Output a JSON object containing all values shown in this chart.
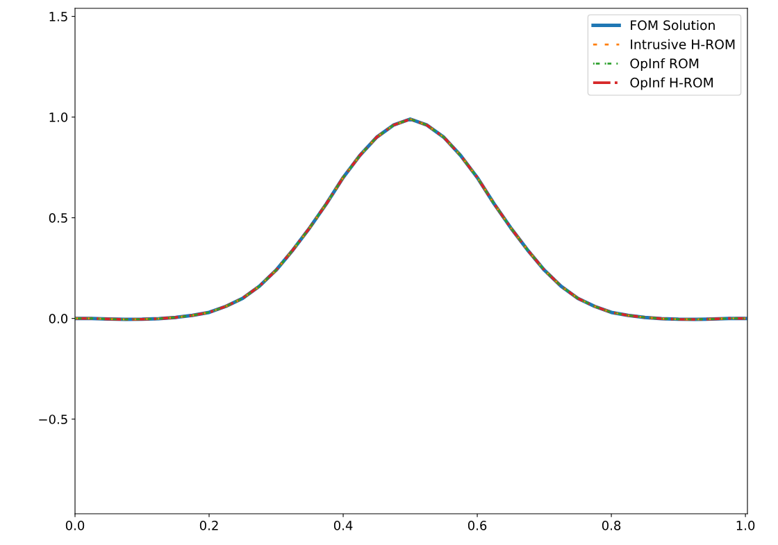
{
  "chart_data": {
    "type": "line",
    "x": [
      0,
      0.025,
      0.05,
      0.075,
      0.1,
      0.125,
      0.15,
      0.175,
      0.2,
      0.225,
      0.25,
      0.275,
      0.3,
      0.325,
      0.35,
      0.375,
      0.4,
      0.425,
      0.45,
      0.475,
      0.5,
      0.525,
      0.55,
      0.575,
      0.6,
      0.625,
      0.65,
      0.675,
      0.7,
      0.725,
      0.75,
      0.775,
      0.8,
      0.825,
      0.85,
      0.875,
      0.9,
      0.925,
      0.95,
      0.975,
      1.0
    ],
    "series": [
      {
        "name": "FOM Solution",
        "color": "#1f77b4",
        "line_style": "solid",
        "values": [
          0.0,
          0.0,
          -0.003,
          -0.005,
          -0.004,
          -0.001,
          0.005,
          0.015,
          0.03,
          0.06,
          0.1,
          0.16,
          0.24,
          0.34,
          0.45,
          0.57,
          0.7,
          0.81,
          0.9,
          0.96,
          0.99,
          0.96,
          0.9,
          0.81,
          0.7,
          0.57,
          0.45,
          0.34,
          0.24,
          0.16,
          0.1,
          0.06,
          0.03,
          0.015,
          0.005,
          -0.001,
          -0.004,
          -0.005,
          -0.003,
          0.0,
          0.0
        ]
      },
      {
        "name": "Intrusive H-ROM",
        "color": "#ff7f0e",
        "line_style": "dashed",
        "values": [
          0.0,
          0.0,
          -0.003,
          -0.005,
          -0.004,
          -0.001,
          0.005,
          0.015,
          0.03,
          0.06,
          0.1,
          0.16,
          0.24,
          0.34,
          0.45,
          0.57,
          0.7,
          0.81,
          0.9,
          0.96,
          0.99,
          0.96,
          0.9,
          0.81,
          0.7,
          0.57,
          0.45,
          0.34,
          0.24,
          0.16,
          0.1,
          0.06,
          0.03,
          0.015,
          0.005,
          -0.001,
          -0.004,
          -0.005,
          -0.003,
          0.0,
          0.0
        ]
      },
      {
        "name": "OpInf ROM",
        "color": "#2ca02c",
        "line_style": "dashed",
        "values": [
          0.0,
          0.0,
          -0.003,
          -0.005,
          -0.004,
          -0.001,
          0.005,
          0.015,
          0.03,
          0.06,
          0.1,
          0.16,
          0.24,
          0.34,
          0.45,
          0.57,
          0.7,
          0.81,
          0.9,
          0.96,
          0.99,
          0.96,
          0.9,
          0.81,
          0.7,
          0.57,
          0.45,
          0.34,
          0.24,
          0.16,
          0.1,
          0.06,
          0.03,
          0.015,
          0.005,
          -0.001,
          -0.004,
          -0.005,
          -0.003,
          0.0,
          0.0
        ]
      },
      {
        "name": "OpInf H-ROM",
        "color": "#d62728",
        "line_style": "dashdot",
        "values": [
          0.0,
          0.0,
          -0.003,
          -0.005,
          -0.004,
          -0.001,
          0.005,
          0.015,
          0.03,
          0.06,
          0.1,
          0.16,
          0.24,
          0.34,
          0.45,
          0.57,
          0.7,
          0.81,
          0.9,
          0.96,
          0.99,
          0.96,
          0.9,
          0.81,
          0.7,
          0.57,
          0.45,
          0.34,
          0.24,
          0.16,
          0.1,
          0.06,
          0.03,
          0.015,
          0.005,
          -0.001,
          -0.004,
          -0.005,
          -0.003,
          0.0,
          0.0
        ]
      }
    ],
    "xlim": [
      0,
      1.003
    ],
    "ylim": [
      -0.97,
      1.54
    ],
    "xticks": [
      {
        "value": 0,
        "label": "0.0"
      },
      0.2,
      0.4,
      0.6,
      0.8,
      {
        "value": 1,
        "label": "1.0"
      }
    ],
    "yticks": [
      {
        "value": -0.5,
        "label": "−0.5"
      },
      {
        "value": 0,
        "label": "0.0"
      },
      0.5,
      {
        "value": 1,
        "label": "1.0"
      },
      1.5
    ],
    "grid": false,
    "legend": "top right",
    "marker": "none"
  }
}
